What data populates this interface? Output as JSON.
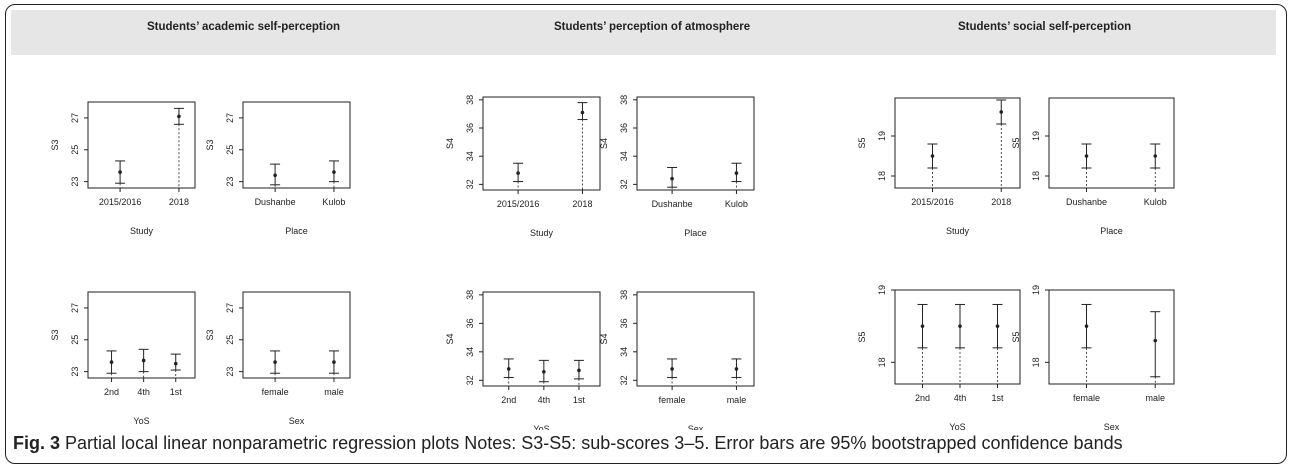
{
  "panel_titles": [
    "Students’ academic self-perception",
    "Students’ perception of atmosphere",
    "Students’ social self-perception"
  ],
  "caption": {
    "label": "Fig. 3",
    "text": "Partial local linear nonparametric regression plots Notes: S3-S5: sub-scores 3–5. Error bars are 95% bootstrapped confidence bands"
  },
  "chart_data": [
    {
      "type": "scatter",
      "group": "Students’ academic self-perception",
      "ylabel": "S3",
      "xlabel": "Study",
      "categories": [
        "2015/2016",
        "2018"
      ],
      "values": [
        23.6,
        27.1
      ],
      "ci_low": [
        22.9,
        26.6
      ],
      "ci_high": [
        24.3,
        27.6
      ],
      "ylim": [
        22.6,
        28.0
      ],
      "yticks": [
        23,
        25,
        27
      ]
    },
    {
      "type": "scatter",
      "group": "Students’ academic self-perception",
      "ylabel": "S3",
      "xlabel": "Place",
      "categories": [
        "Dushanbe",
        "Kulob"
      ],
      "values": [
        23.4,
        23.6
      ],
      "ci_low": [
        22.8,
        23.0
      ],
      "ci_high": [
        24.1,
        24.3
      ],
      "ylim": [
        22.6,
        28.0
      ],
      "yticks": [
        23,
        25,
        27
      ]
    },
    {
      "type": "scatter",
      "group": "Students’ academic self-perception",
      "ylabel": "S3",
      "xlabel": "YoS",
      "categories": [
        "2nd",
        "4th",
        "1st"
      ],
      "values": [
        23.6,
        23.7,
        23.5
      ],
      "ci_low": [
        22.9,
        23.0,
        23.1
      ],
      "ci_high": [
        24.3,
        24.4,
        24.1
      ],
      "ylim": [
        22.6,
        28.0
      ],
      "yticks": [
        23,
        25,
        27
      ]
    },
    {
      "type": "scatter",
      "group": "Students’ academic self-perception",
      "ylabel": "S3",
      "xlabel": "Sex",
      "categories": [
        "female",
        "male"
      ],
      "values": [
        23.6,
        23.6
      ],
      "ci_low": [
        22.9,
        22.9
      ],
      "ci_high": [
        24.3,
        24.3
      ],
      "ylim": [
        22.6,
        28.0
      ],
      "yticks": [
        23,
        25,
        27
      ]
    },
    {
      "type": "scatter",
      "group": "Students’ perception of atmosphere",
      "ylabel": "S4",
      "xlabel": "Study",
      "categories": [
        "2015/2016",
        "2018"
      ],
      "values": [
        32.8,
        37.1
      ],
      "ci_low": [
        32.2,
        36.6
      ],
      "ci_high": [
        33.5,
        37.8
      ],
      "ylim": [
        31.6,
        38.2
      ],
      "yticks": [
        32,
        34,
        36,
        38
      ]
    },
    {
      "type": "scatter",
      "group": "Students’ perception of atmosphere",
      "ylabel": "S4",
      "xlabel": "Place",
      "categories": [
        "Dushanbe",
        "Kulob"
      ],
      "values": [
        32.4,
        32.8
      ],
      "ci_low": [
        31.8,
        32.2
      ],
      "ci_high": [
        33.2,
        33.5
      ],
      "ylim": [
        31.6,
        38.2
      ],
      "yticks": [
        32,
        34,
        36,
        38
      ]
    },
    {
      "type": "scatter",
      "group": "Students’ perception of atmosphere",
      "ylabel": "S4",
      "xlabel": "YoS",
      "categories": [
        "2nd",
        "4th",
        "1st"
      ],
      "values": [
        32.8,
        32.6,
        32.7
      ],
      "ci_low": [
        32.2,
        31.9,
        32.1
      ],
      "ci_high": [
        33.5,
        33.4,
        33.4
      ],
      "ylim": [
        31.6,
        38.2
      ],
      "yticks": [
        32,
        34,
        36,
        38
      ]
    },
    {
      "type": "scatter",
      "group": "Students’ perception of atmosphere",
      "ylabel": "S4",
      "xlabel": "Sex",
      "categories": [
        "female",
        "male"
      ],
      "values": [
        32.8,
        32.8
      ],
      "ci_low": [
        32.2,
        32.2
      ],
      "ci_high": [
        33.5,
        33.5
      ],
      "ylim": [
        31.6,
        38.2
      ],
      "yticks": [
        32,
        34,
        36,
        38
      ]
    },
    {
      "type": "scatter",
      "group": "Students’ social self-perception",
      "ylabel": "S5",
      "xlabel": "Study",
      "categories": [
        "2015/2016",
        "2018"
      ],
      "values": [
        18.5,
        19.6
      ],
      "ci_low": [
        18.2,
        19.3
      ],
      "ci_high": [
        18.8,
        19.9
      ],
      "ylim": [
        17.7,
        19.95
      ],
      "yticks": [
        18.0,
        19.0
      ]
    },
    {
      "type": "scatter",
      "group": "Students’ social self-perception",
      "ylabel": "S5",
      "xlabel": "Place",
      "categories": [
        "Dushanbe",
        "Kulob"
      ],
      "values": [
        18.5,
        18.5
      ],
      "ci_low": [
        18.2,
        18.2
      ],
      "ci_high": [
        18.8,
        18.8
      ],
      "ylim": [
        17.7,
        19.95
      ],
      "yticks": [
        18.0,
        19.0
      ]
    },
    {
      "type": "scatter",
      "group": "Students’ social self-perception",
      "ylabel": "S5",
      "xlabel": "YoS",
      "categories": [
        "2nd",
        "4th",
        "1st"
      ],
      "values": [
        18.5,
        18.5,
        18.5
      ],
      "ci_low": [
        18.2,
        18.2,
        18.2
      ],
      "ci_high": [
        18.8,
        18.8,
        18.8
      ],
      "ylim": [
        17.7,
        19.0
      ],
      "yticks": [
        18.0,
        19.0
      ]
    },
    {
      "type": "scatter",
      "group": "Students’ social self-perception",
      "ylabel": "S5",
      "xlabel": "Sex",
      "categories": [
        "female",
        "male"
      ],
      "values": [
        18.5,
        18.3
      ],
      "ci_low": [
        18.2,
        17.8
      ],
      "ci_high": [
        18.8,
        18.7
      ],
      "ylim": [
        17.7,
        19.0
      ],
      "yticks": [
        18.0,
        19.0
      ]
    }
  ]
}
